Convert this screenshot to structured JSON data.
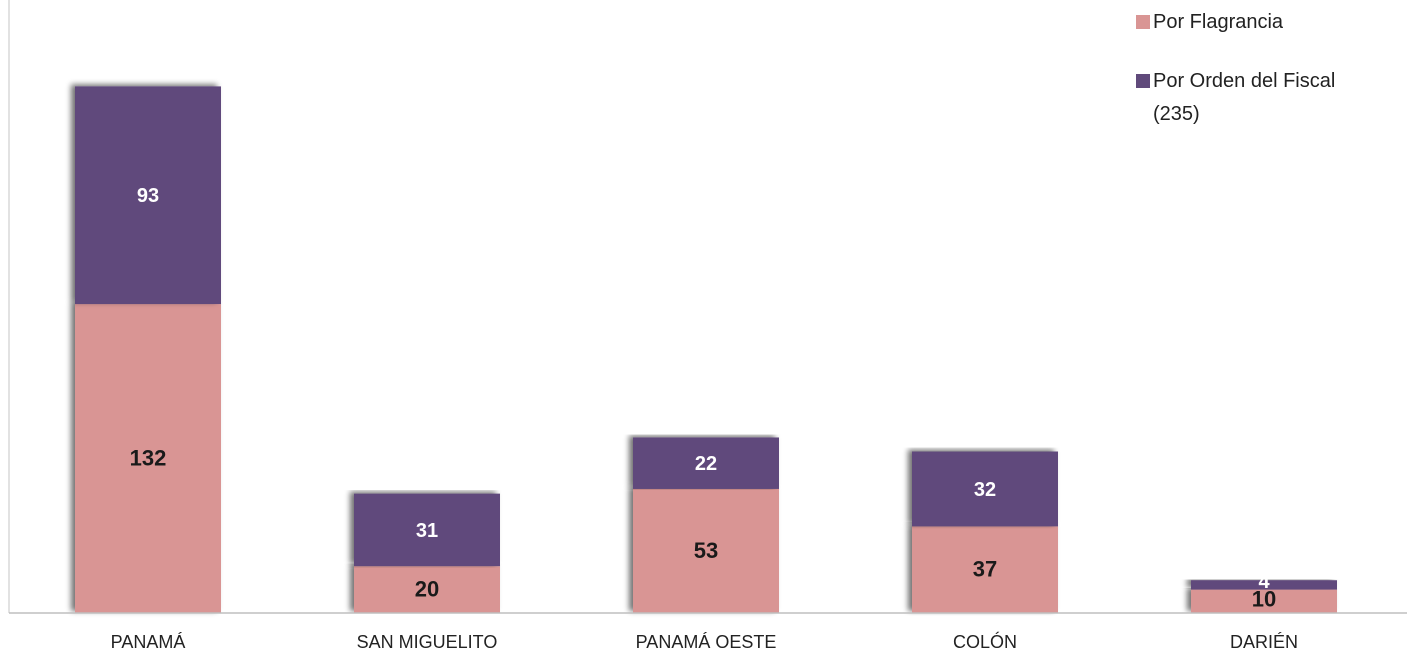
{
  "chart_data": {
    "type": "bar",
    "stacked": true,
    "categories": [
      "PANAMÁ",
      "SAN MIGUELITO",
      "PANAMÁ OESTE",
      "COLÓN",
      "DARIÉN"
    ],
    "series": [
      {
        "name": "Por Flagrancia",
        "values": [
          132,
          20,
          53,
          37,
          10
        ],
        "color": "#d99594",
        "label_color": "#1a1a1a"
      },
      {
        "name": "Por Orden del Fiscal (235)",
        "values": [
          93,
          31,
          22,
          32,
          4
        ],
        "color": "#604a7b",
        "label_color": "#ffffff"
      }
    ],
    "ylim": [
      0,
      235
    ],
    "grid": false,
    "legend_position": "top-right"
  }
}
